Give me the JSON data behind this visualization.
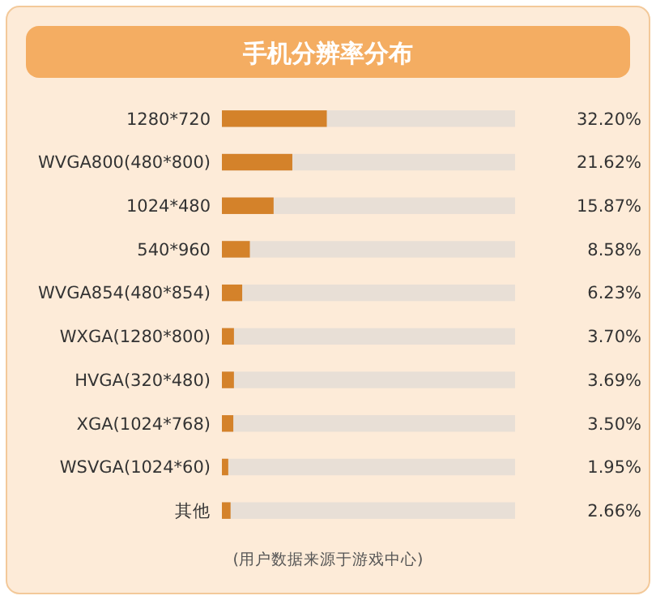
{
  "chart_data": {
    "type": "bar",
    "orientation": "horizontal",
    "title": "手机分辨率分布",
    "categories": [
      "1280*720",
      "WVGA800(480*800)",
      "1024*480",
      "540*960",
      "WVGA854(480*854)",
      "WXGA(1280*800)",
      "HVGA(320*480)",
      "XGA(1024*768)",
      "WSVGA(1024*60)",
      "其他"
    ],
    "values": [
      32.2,
      21.62,
      15.87,
      8.58,
      6.23,
      3.7,
      3.69,
      3.5,
      1.95,
      2.66
    ],
    "value_labels": [
      "32.20%",
      "21.62%",
      "15.87%",
      "8.58%",
      "6.23%",
      "3.70%",
      "3.69%",
      "3.50%",
      "1.95%",
      "2.66%"
    ],
    "color": "#d4822a",
    "xlim": [
      0,
      90
    ],
    "tick_labels": "y",
    "annotations": [
      "(用户数据来源于游戏中心)"
    ]
  }
}
